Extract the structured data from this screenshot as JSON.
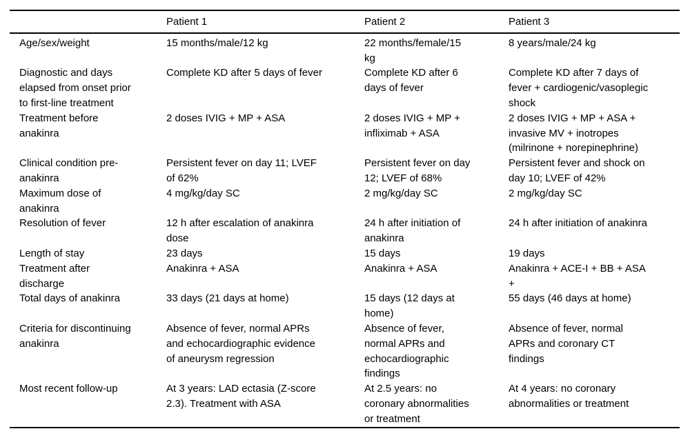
{
  "table": {
    "columns": {
      "label": "",
      "p1": "Patient 1",
      "p2": "Patient 2",
      "p3": "Patient 3"
    },
    "rows": [
      {
        "label": "Age/sex/weight",
        "p1": "15 months/male/12 kg",
        "p2": "22 months/female/15\nkg",
        "p3": "8 years/male/24 kg"
      },
      {
        "label": "Diagnostic and days\nelapsed from onset prior\nto first-line treatment",
        "p1": "Complete KD after 5 days of fever",
        "p2": "Complete KD after 6\ndays of fever",
        "p3": "Complete KD after 7 days of\nfever + cardiogenic/vasoplegic\nshock"
      },
      {
        "label": "Treatment before\nanakinra",
        "p1": "2 doses IVIG + MP + ASA",
        "p2": "2 doses IVIG + MP +\ninfliximab + ASA",
        "p3": "2 doses IVIG + MP + ASA +\ninvasive MV + inotropes\n(milrinone + norepinephrine)"
      },
      {
        "label": "Clinical condition pre-\nanakinra",
        "p1": "Persistent fever on day 11; LVEF\nof 62%",
        "p2": "Persistent fever on day\n12; LVEF of 68%",
        "p3": "Persistent fever and shock on\nday 10; LVEF of 42%"
      },
      {
        "label": "Maximum dose of\nanakinra",
        "p1": "4 mg/kg/day SC",
        "p2": "2 mg/kg/day SC",
        "p3": "2 mg/kg/day SC"
      },
      {
        "label": "Resolution of fever",
        "p1": "12 h after escalation of anakinra\ndose",
        "p2": "24 h after initiation of\nanakinra",
        "p3": "24 h after initiation of anakinra"
      },
      {
        "label": "Length of stay",
        "p1": "23 days",
        "p2": "15 days",
        "p3": "19 days"
      },
      {
        "label": "Treatment after\ndischarge",
        "p1": "Anakinra + ASA",
        "p2": "Anakinra + ASA",
        "p3": "Anakinra + ACE-I + BB + ASA\n+"
      },
      {
        "label": "Total days of anakinra",
        "p1": "33 days (21 days at home)",
        "p2": "15 days (12 days at\nhome)",
        "p3": "55 days (46 days at home)"
      },
      {
        "label": "Criteria for discontinuing\nanakinra",
        "p1": "Absence of fever, normal APRs\nand echocardiographic evidence\nof aneurysm regression",
        "p2": "Absence of fever,\nnormal APRs and\nechocardiographic\nfindings",
        "p3": "Absence of fever, normal\nAPRs and coronary CT\nfindings"
      },
      {
        "label": "Most recent follow-up",
        "p1": "At 3 years: LAD ectasia (Z-score\n2.3). Treatment with ASA",
        "p2": "At 2.5 years: no\ncoronary abnormalities\nor treatment",
        "p3": "At 4 years: no coronary\nabnormalities or treatment"
      }
    ]
  },
  "colors": {
    "text": "#000000",
    "rule": "#000000",
    "background": "#ffffff"
  }
}
